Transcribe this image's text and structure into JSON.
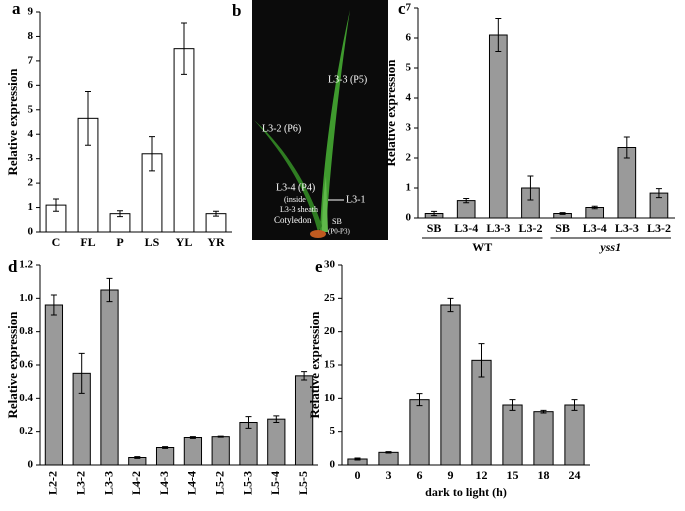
{
  "chart_data": [
    {
      "type": "bar",
      "panel": "a",
      "ylabel": "Relative expression",
      "color": "#ffffff",
      "categories": [
        "C",
        "FL",
        "P",
        "LS",
        "YL",
        "YR"
      ],
      "values": [
        1.1,
        4.65,
        0.75,
        3.2,
        7.5,
        0.75
      ],
      "errors": [
        0.25,
        1.1,
        0.12,
        0.7,
        1.05,
        0.1
      ],
      "ylim": [
        0,
        9
      ],
      "yticks": [
        0,
        1,
        2,
        3,
        4,
        5,
        6,
        7,
        8,
        9
      ]
    },
    {
      "type": "bar",
      "panel": "c",
      "ylabel": "Relative expression",
      "color": "#9a9a9a",
      "categories": [
        "SB",
        "L3-4",
        "L3-3",
        "L3-2",
        "SB",
        "L3-4",
        "L3-3",
        "L3-2"
      ],
      "groups": [
        "WT",
        "yss1"
      ],
      "values": [
        0.15,
        0.58,
        6.1,
        1.0,
        0.15,
        0.35,
        2.35,
        0.83
      ],
      "errors": [
        0.07,
        0.07,
        0.55,
        0.4,
        0.03,
        0.04,
        0.35,
        0.15
      ],
      "ylim": [
        0,
        7
      ],
      "yticks": [
        0,
        1,
        2,
        3,
        4,
        5,
        6,
        7
      ]
    },
    {
      "type": "bar",
      "panel": "d",
      "ylabel": "Relative expression",
      "color": "#9a9a9a",
      "categories": [
        "L2-2",
        "L3-2",
        "L3-3",
        "L4-2",
        "L4-3",
        "L4-4",
        "L5-2",
        "L5-3",
        "L5-4",
        "L5-5"
      ],
      "values": [
        0.96,
        0.55,
        1.05,
        0.045,
        0.105,
        0.165,
        0.17,
        0.255,
        0.275,
        0.535
      ],
      "errors": [
        0.06,
        0.12,
        0.07,
        0.005,
        0.005,
        0.005,
        0.003,
        0.035,
        0.02,
        0.025
      ],
      "ylim": [
        0,
        1.2
      ],
      "yticks": [
        0,
        0.2,
        0.4,
        0.6,
        0.8,
        {
          "value": 1,
          "label": "1.0"
        },
        1.2
      ]
    },
    {
      "type": "bar",
      "panel": "e",
      "ylabel": "Relative expression",
      "xlabel": "dark to light (h)",
      "color": "#9a9a9a",
      "categories": [
        "0",
        "3",
        "6",
        "9",
        "12",
        "15",
        "18",
        "24"
      ],
      "values": [
        0.9,
        1.9,
        9.8,
        24.0,
        15.7,
        9.0,
        8.0,
        9.0
      ],
      "errors": [
        0.15,
        0.1,
        0.9,
        1.0,
        2.5,
        0.8,
        0.2,
        0.8
      ],
      "ylim": [
        0,
        30
      ],
      "yticks": [
        0,
        5,
        10,
        15,
        20,
        25,
        30
      ]
    }
  ],
  "photo": {
    "panel": "b",
    "labels": [
      "L3-3 (P5)",
      "L3-2 (P6)",
      "L3-4 (P4)",
      "(inside",
      "L3-3 sheath",
      "L3-1",
      "Cotyledon",
      "SB",
      "(P0-P3)"
    ]
  }
}
